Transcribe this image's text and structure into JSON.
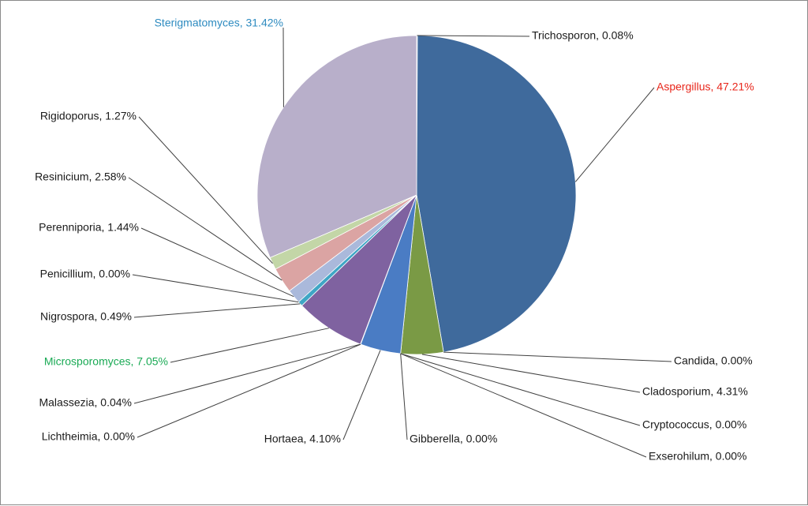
{
  "chart_data": {
    "type": "pie",
    "slices": [
      {
        "name": "Trichosporon",
        "value": 0.08,
        "label": "Trichosporon, 0.08%",
        "color": "#4f81bd"
      },
      {
        "name": "Aspergillus",
        "value": 47.21,
        "label": "Aspergillus, 47.21%",
        "color": "#3f6a9c",
        "label_color": "#e8261b"
      },
      {
        "name": "Candida",
        "value": 0.0,
        "label": "Candida, 0.00%",
        "color": "#c0504d"
      },
      {
        "name": "Cladosporium",
        "value": 4.31,
        "label": "Cladosporium, 4.31%",
        "color": "#7a9a45"
      },
      {
        "name": "Cryptococcus",
        "value": 0.0,
        "label": "Cryptococcus, 0.00%",
        "color": "#8064a2"
      },
      {
        "name": "Exserohilum",
        "value": 0.0,
        "label": "Exserohilum, 0.00%",
        "color": "#4bacc6"
      },
      {
        "name": "Gibberella",
        "value": 0.0,
        "label": "Gibberella, 0.00%",
        "color": "#f79646"
      },
      {
        "name": "Hortaea",
        "value": 4.1,
        "label": "Hortaea, 4.10%",
        "color": "#4a7cc4"
      },
      {
        "name": "Lichtheimia",
        "value": 0.0,
        "label": "Lichtheimia, 0.00%",
        "color": "#9bbb59"
      },
      {
        "name": "Malassezia",
        "value": 0.04,
        "label": "Malassezia, 0.04%",
        "color": "#c0504d"
      },
      {
        "name": "Microsporomyces",
        "value": 7.05,
        "label": "Microsporomyces, 7.05%",
        "color": "#7f62a0",
        "label_color": "#1aaa55"
      },
      {
        "name": "Nigrospora",
        "value": 0.49,
        "label": "Nigrospora, 0.49%",
        "color": "#3fa6c5"
      },
      {
        "name": "Penicillium",
        "value": 0.0,
        "label": "Penicillium, 0.00%",
        "color": "#f79646"
      },
      {
        "name": "Perenniporia",
        "value": 1.44,
        "label": "Perenniporia, 1.44%",
        "color": "#aab9db"
      },
      {
        "name": "Resinicium",
        "value": 2.58,
        "label": "Resinicium, 2.58%",
        "color": "#dba4a3"
      },
      {
        "name": "Rigidoporus",
        "value": 1.27,
        "label": "Rigidoporus, 1.27%",
        "color": "#c3d6a7"
      },
      {
        "name": "Sterigmatomyces",
        "value": 31.42,
        "label": "Sterigmatomyces, 31.42%",
        "color": "#b8afca",
        "label_color": "#2e8bc0"
      }
    ],
    "start_angle_deg": 0,
    "direction": "clockwise",
    "legend": "none",
    "data_labels": "outside-with-leader-lines"
  }
}
